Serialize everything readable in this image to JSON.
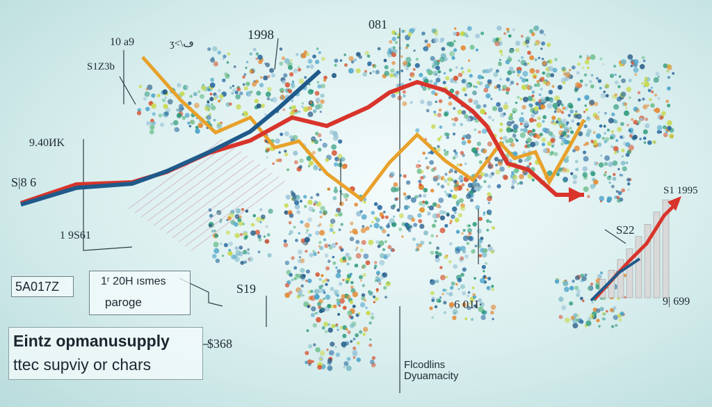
{
  "chart_data": {
    "type": "line",
    "title": "",
    "xlabel": "",
    "ylabel": "",
    "series": [
      {
        "color": "#e8a12a",
        "values": [
          8,
          6,
          4.5,
          5.2,
          3.8,
          4.1,
          2.6,
          1.4,
          3.1,
          4.4,
          3.2,
          2.3,
          4.0,
          3.3,
          3.6,
          2.2,
          3.9,
          5.1
        ]
      },
      {
        "color": "#d8342b",
        "values": [
          0.6,
          1.5,
          1.6,
          2.1,
          3.0,
          3.6,
          4.7,
          4.3,
          5.2,
          5.9,
          6.4,
          6.0,
          5.0,
          4.3,
          2.5,
          2.2,
          1.0,
          1.0
        ]
      },
      {
        "color": "#1f5a8a",
        "values": [
          0.6,
          1.4,
          1.6,
          2.2,
          3.1,
          4.1,
          5.2,
          6.4,
          7.0
        ]
      }
    ],
    "bars": {
      "color": "#d9d9d9",
      "values": [
        1.2,
        1.8,
        2.5,
        3.2,
        4.0,
        4.8,
        5.6,
        6.4
      ]
    }
  },
  "labels": {
    "l1": "10 a9",
    "l2": "ӡ<\\ڡ",
    "l3": "1998",
    "l4": "081",
    "l5": "S1Z3b",
    "l6": "9.40ИK",
    "l7": "S|8 6",
    "l8": "1 9S61",
    "l9": "S1 1995",
    "l10": "S22",
    "l11": "9| 699",
    "l12": "6 01I·",
    "l13": "S19",
    "l14": "$368",
    "l15": "Flcodlins",
    "l16": "Dyuamacity"
  },
  "boxes": {
    "left": "5A017Z",
    "center_line1": "1ʳ 20H ısmes",
    "center_line2": "paroge",
    "bottom_line1": "Eintz opmanusupply",
    "bottom_line2": "ttec supviy or chars"
  }
}
